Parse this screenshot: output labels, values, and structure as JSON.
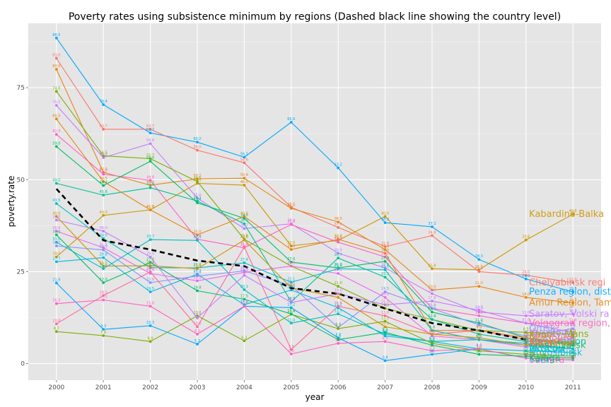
{
  "chart_data": {
    "type": "line",
    "title": "Poverty rates using subsistence minimum by regions (Dashed black line showing the country level)",
    "xlabel": "year",
    "ylabel": "poverty.rate",
    "x": [
      2000,
      2001,
      2002,
      2003,
      2004,
      2005,
      2006,
      2007,
      2008,
      2009,
      2010,
      2011
    ],
    "x_ticks": [
      "2000",
      "2001",
      "2002",
      "2003",
      "2004",
      "2005",
      "2006",
      "2007",
      "2008",
      "2009",
      "2010",
      "2011"
    ],
    "y_ticks": [
      "0",
      "25",
      "50",
      "75"
    ],
    "xlim": [
      1999.4,
      2011.6
    ],
    "ylim": [
      -4.5,
      92.5
    ],
    "grid": true,
    "background": "#e5e5e5",
    "country": {
      "values": [
        47.5,
        33.5,
        31.0,
        28.0,
        26.5,
        20.5,
        19.0,
        15.0,
        11.0,
        9.0,
        6.5,
        null
      ]
    },
    "series": [
      {
        "color": "#00a9ff",
        "label": "Penza region, district Ze",
        "values": [
          88.5,
          70.4,
          62.7,
          60.2,
          56.1,
          65.6,
          53.2,
          38.3,
          37.2,
          28.3,
          23.0,
          19.5
        ]
      },
      {
        "color": "#cd9600",
        "label": "Kabardino-Balka",
        "values": [
          29.0,
          40.3,
          41.8,
          49.0,
          48.5,
          32.0,
          33.5,
          40.0,
          25.8,
          25.5,
          33.6,
          40.6
        ]
      },
      {
        "color": "#f8766d",
        "label": "Chelyabinsk regi",
        "values": [
          83.0,
          63.7,
          63.7,
          58.0,
          54.6,
          42.5,
          37.0,
          31.8,
          34.8,
          25.0,
          24.0,
          22.0
        ]
      },
      {
        "color": "#e68613",
        "label": "Amur Region, Tambo",
        "values": [
          80.0,
          52.0,
          48.5,
          50.2,
          50.4,
          42.2,
          38.5,
          31.0,
          20.0,
          21.0,
          18.0,
          16.5
        ]
      },
      {
        "color": "#c77cff",
        "label": "Saratov, Volski ra",
        "values": [
          70.2,
          56.0,
          59.8,
          45.0,
          36.7,
          38.0,
          30.0,
          26.0,
          19.0,
          14.0,
          13.0,
          13.5
        ]
      },
      {
        "color": "#ff61c3",
        "label": "Volgograd region, suny",
        "values": [
          62.3,
          51.5,
          49.8,
          33.8,
          31.5,
          37.8,
          33.0,
          29.0,
          15.0,
          13.0,
          11.0,
          11.0
        ]
      },
      {
        "color": "#7cae00",
        "label": "Khanty-Mans",
        "values": [
          74.0,
          56.5,
          55.7,
          49.5,
          33.8,
          26.5,
          21.0,
          15.0,
          12.0,
          9.0,
          8.5,
          8.0
        ]
      },
      {
        "color": "#00be67",
        "label": "Krasnoyarsk",
        "values": [
          59.0,
          48.4,
          55.0,
          43.7,
          39.5,
          27.6,
          26.0,
          27.8,
          14.0,
          11.0,
          7.0,
          5.0
        ]
      },
      {
        "color": "#00c19a",
        "label": "Kursk region",
        "values": [
          49.0,
          45.8,
          47.8,
          44.2,
          38.0,
          16.8,
          28.7,
          23.5,
          12.0,
          8.0,
          6.0,
          6.0
        ]
      },
      {
        "color": "#00bfc4",
        "label": "Moscow",
        "values": [
          33.0,
          25.8,
          33.7,
          33.5,
          20.1,
          11.0,
          13.5,
          8.0,
          6.0,
          6.5,
          5.5,
          4.0
        ]
      },
      {
        "color": "#00b8e7",
        "label": "Novosibirsk",
        "values": [
          27.7,
          28.8,
          19.5,
          24.3,
          16.0,
          20.0,
          15.2,
          7.5,
          6.0,
          4.0,
          3.5,
          3.0
        ]
      },
      {
        "color": "#8494ff",
        "label": "Omsk",
        "values": [
          32.0,
          30.9,
          22.0,
          23.8,
          25.2,
          21.2,
          9.8,
          19.5,
          15.0,
          10.5,
          7.5,
          9.5
        ]
      },
      {
        "color": "#ed68ed",
        "label": "Orenburg",
        "values": [
          36.0,
          31.5,
          24.5,
          22.5,
          24.8,
          26.5,
          24.5,
          18.0,
          7.5,
          6.5,
          4.5,
          7.0
        ]
      },
      {
        "color": "#ff68a1",
        "label": "Perm",
        "values": [
          10.8,
          18.5,
          24.9,
          10.0,
          31.7,
          3.8,
          15.6,
          13.0,
          8.0,
          9.0,
          6.5,
          5.5
        ]
      },
      {
        "color": "#7cae00",
        "label": "Tula",
        "values": [
          8.7,
          7.6,
          6.0,
          13.0,
          6.2,
          13.4,
          9.5,
          11.5,
          5.5,
          3.5,
          2.5,
          2.0
        ]
      },
      {
        "color": "#00a9ff",
        "label": "Tver",
        "values": [
          21.9,
          9.3,
          10.3,
          5.3,
          15.6,
          15.2,
          7.0,
          0.8,
          2.5,
          4.0,
          1.5,
          1.0
        ]
      },
      {
        "color": "#ff61c3",
        "label": "Samara",
        "values": [
          16.3,
          17.3,
          15.6,
          8.0,
          15.6,
          2.6,
          5.5,
          6.0,
          3.5,
          4.0,
          1.5,
          1.0
        ]
      },
      {
        "color": "#e68613",
        "label": "Astrakhan",
        "values": [
          66.5,
          49.5,
          41.8,
          35.0,
          40.0,
          31.0,
          33.8,
          30.0,
          9.0,
          9.0,
          7.0,
          5.5
        ]
      },
      {
        "color": "#00bfc4",
        "label": "Irkutsk",
        "values": [
          43.5,
          34.0,
          26.1,
          26.0,
          27.4,
          22.1,
          25.8,
          25.5,
          9.0,
          6.5,
          5.0,
          4.0
        ]
      },
      {
        "color": "#00be67",
        "label": "Kaluga",
        "values": [
          35.0,
          22.0,
          27.5,
          19.8,
          17.5,
          13.5,
          6.5,
          8.5,
          5.0,
          2.5,
          2.0,
          1.5
        ]
      },
      {
        "color": "#c77cff",
        "label": "Yaroslavl",
        "values": [
          39.0,
          36.0,
          29.0,
          12.4,
          24.0,
          16.6,
          19.0,
          16.0,
          17.0,
          14.5,
          11.0,
          8.5
        ]
      },
      {
        "color": "#cd9600",
        "label": "Kirov",
        "values": [
          40.0,
          26.5,
          26.6,
          25.8,
          33.6,
          20.6,
          18.0,
          10.0,
          8.0,
          7.0,
          5.0,
          7.5
        ]
      }
    ]
  }
}
